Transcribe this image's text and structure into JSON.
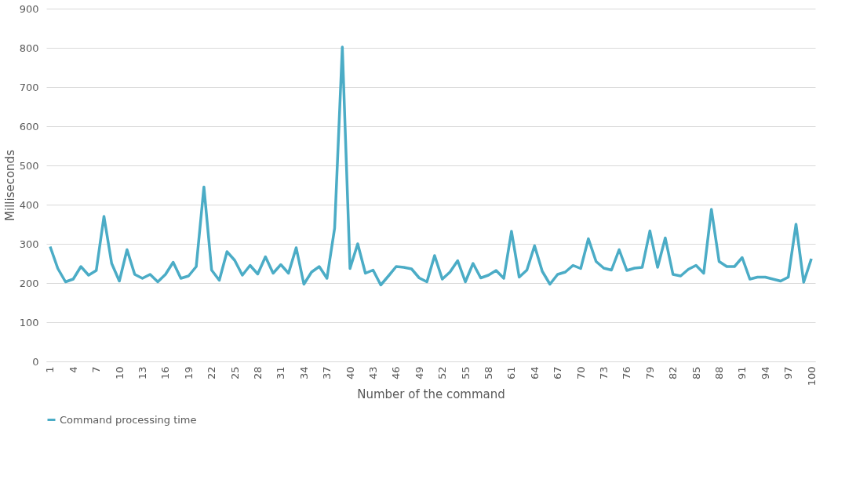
{
  "chart_data": {
    "type": "line",
    "xlabel": "Number of the command",
    "ylabel": "Milliseconds",
    "categories": [
      "1",
      null,
      null,
      "4",
      null,
      null,
      "7",
      null,
      null,
      "10",
      null,
      null,
      "13",
      null,
      null,
      "16",
      null,
      null,
      "19",
      null,
      null,
      "22",
      null,
      null,
      "25",
      null,
      null,
      "28",
      null,
      null,
      "31",
      null,
      null,
      "34",
      null,
      null,
      "37",
      null,
      null,
      "40",
      null,
      null,
      "43",
      null,
      null,
      "46",
      null,
      null,
      "49",
      null,
      null,
      "52",
      null,
      null,
      "55",
      null,
      null,
      "58",
      null,
      null,
      "61",
      null,
      null,
      "64",
      null,
      null,
      "67",
      null,
      null,
      "70",
      null,
      null,
      "73",
      null,
      null,
      "76",
      null,
      null,
      "79",
      null,
      null,
      "82",
      null,
      null,
      "85",
      null,
      null,
      "88",
      null,
      null,
      "91",
      null,
      null,
      "94",
      null,
      null,
      "97",
      null,
      null,
      "100"
    ],
    "series": [
      {
        "name": "Command processing time",
        "color": "#4bacc6",
        "values": [
          293,
          237,
          203,
          210,
          242,
          220,
          232,
          370,
          250,
          205,
          285,
          222,
          212,
          222,
          203,
          222,
          253,
          212,
          218,
          242,
          445,
          233,
          207,
          280,
          258,
          220,
          245,
          223,
          267,
          225,
          247,
          225,
          290,
          197,
          228,
          242,
          212,
          340,
          802,
          237,
          300,
          225,
          233,
          195,
          218,
          242,
          240,
          236,
          213,
          203,
          270,
          210,
          228,
          257,
          203,
          250,
          213,
          220,
          232,
          212,
          332,
          215,
          233,
          295,
          230,
          197,
          222,
          228,
          245,
          237,
          313,
          255,
          238,
          233,
          285,
          232,
          238,
          240,
          333,
          240,
          315,
          222,
          218,
          235,
          245,
          225,
          388,
          255,
          242,
          242,
          265,
          210,
          215,
          215,
          210,
          205,
          215,
          350,
          202,
          262
        ]
      }
    ],
    "ylim": [
      0,
      900
    ],
    "yticks": [
      0,
      100,
      200,
      300,
      400,
      500,
      600,
      700,
      800,
      900
    ],
    "grid": "y",
    "legend": "bottom",
    "marker": "none",
    "line_style": "solid"
  }
}
